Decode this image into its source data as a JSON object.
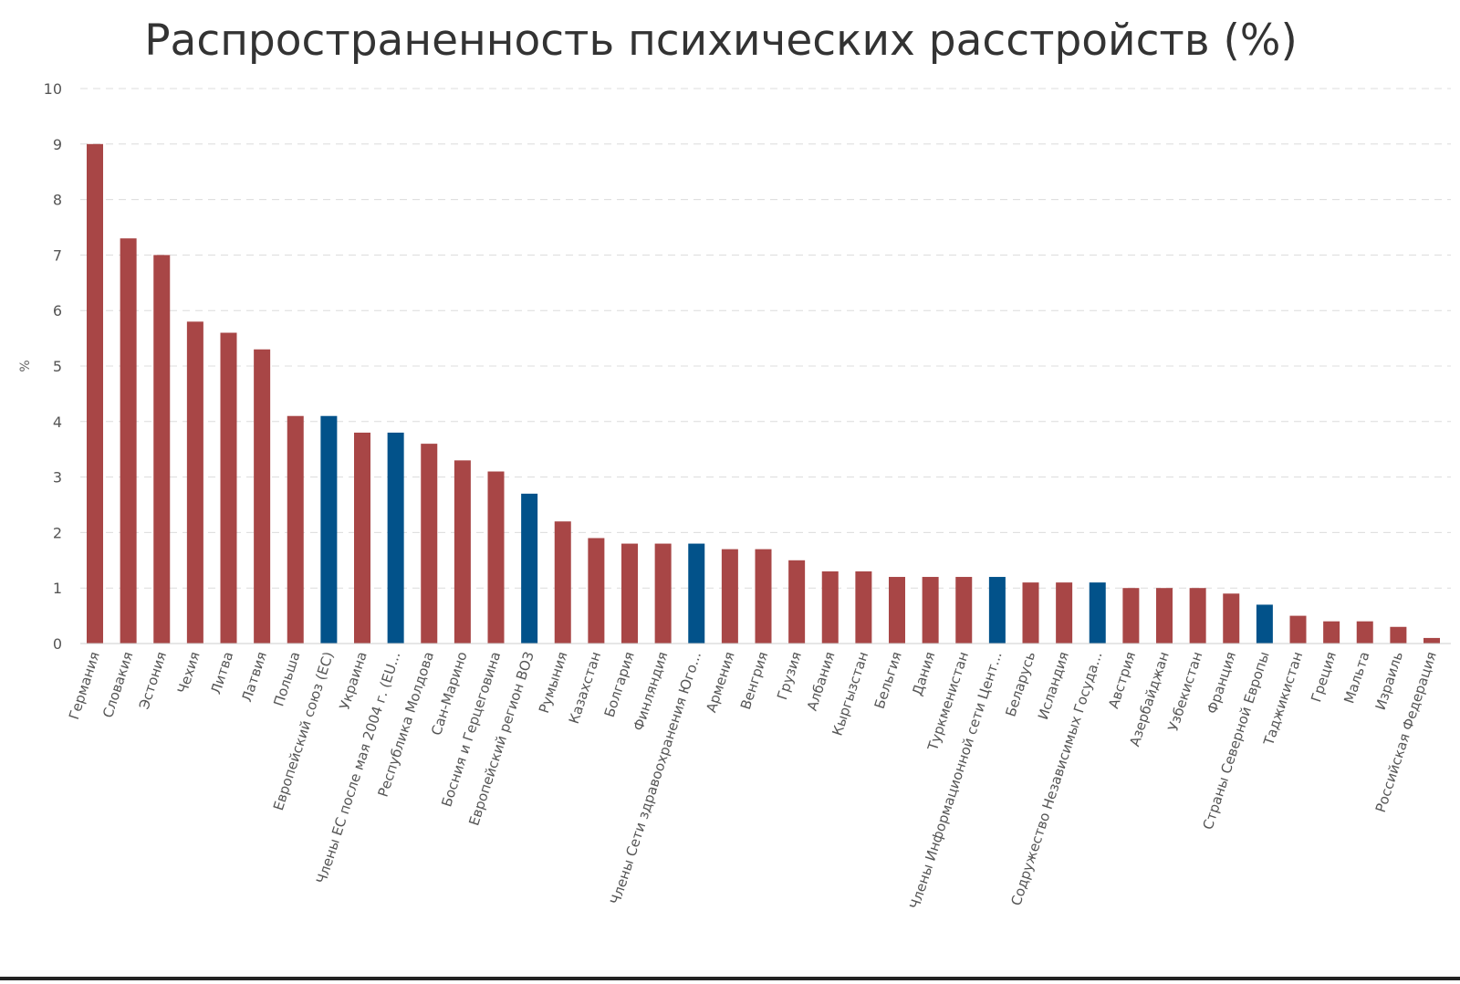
{
  "chart_data": {
    "type": "bar",
    "title": "Распространенность психических расстройств (%)",
    "xlabel": "",
    "ylabel": "%",
    "ylim": [
      0,
      10
    ],
    "yticks": [
      0,
      1,
      2,
      3,
      4,
      5,
      6,
      7,
      8,
      9,
      10
    ],
    "grid": true,
    "legend": "none",
    "colors": {
      "country": "#a84646",
      "group": "#02528a"
    },
    "categories": [
      "Германия",
      "Словакия",
      "Эстония",
      "Чехия",
      "Литва",
      "Латвия",
      "Польша",
      "Европейский союз (ЕС)",
      "Украина",
      "Члены ЕС после мая 2004 г. (EU...",
      "Республика Молдова",
      "Сан-Марино",
      "Босния и Герцеговина",
      "Европейский регион ВОЗ",
      "Румыния",
      "Казахстан",
      "Болгария",
      "Финляндия",
      "Члены Сети здравоохранения Юго...",
      "Армения",
      "Венгрия",
      "Грузия",
      "Албания",
      "Кыргызстан",
      "Бельгия",
      "Дания",
      "Туркменистан",
      "Члены Информационной сети Цент...",
      "Беларусь",
      "Исландия",
      "Содружество Независимых Госуда...",
      "Австрия",
      "Азербайджан",
      "Узбекистан",
      "Франция",
      "Страны Северной Европы",
      "Таджикистан",
      "Греция",
      "Мальта",
      "Израиль",
      "Российская Федерация"
    ],
    "values": [
      9.0,
      7.3,
      7.0,
      5.8,
      5.6,
      5.3,
      4.1,
      4.1,
      3.8,
      3.8,
      3.6,
      3.3,
      3.1,
      2.7,
      2.2,
      1.9,
      1.8,
      1.8,
      1.8,
      1.7,
      1.7,
      1.5,
      1.3,
      1.3,
      1.2,
      1.2,
      1.2,
      1.2,
      1.1,
      1.1,
      1.1,
      1.0,
      1.0,
      1.0,
      0.9,
      0.7,
      0.5,
      0.4,
      0.4,
      0.3,
      0.1
    ],
    "bar_kind": [
      "country",
      "country",
      "country",
      "country",
      "country",
      "country",
      "country",
      "group",
      "country",
      "group",
      "country",
      "country",
      "country",
      "group",
      "country",
      "country",
      "country",
      "country",
      "group",
      "country",
      "country",
      "country",
      "country",
      "country",
      "country",
      "country",
      "country",
      "group",
      "country",
      "country",
      "group",
      "country",
      "country",
      "country",
      "country",
      "group",
      "country",
      "country",
      "country",
      "country",
      "country"
    ]
  }
}
